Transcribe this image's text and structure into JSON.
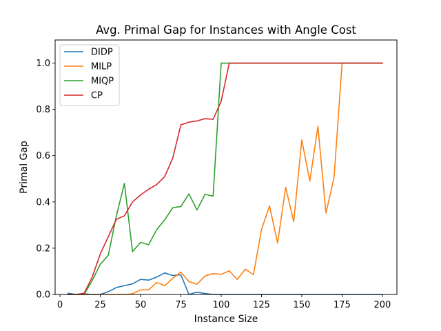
{
  "chart_data": {
    "type": "line",
    "title": "Avg. Primal Gap for Instances with Angle Cost",
    "xlabel": "Instance Size",
    "ylabel": "Primal Gap",
    "xlim": [
      -3,
      209
    ],
    "ylim": [
      0,
      1.1
    ],
    "xticks": [
      0,
      25,
      50,
      75,
      100,
      125,
      150,
      175,
      200
    ],
    "yticks": [
      0.0,
      0.2,
      0.4,
      0.6,
      0.8,
      1.0
    ],
    "xtick_labels": [
      "0",
      "25",
      "50",
      "75",
      "100",
      "125",
      "150",
      "175",
      "200"
    ],
    "ytick_labels": [
      "0.0",
      "0.2",
      "0.4",
      "0.6",
      "0.8",
      "1.0"
    ],
    "grid": false,
    "legend_position": "top-left",
    "x": [
      5,
      10,
      15,
      20,
      25,
      30,
      35,
      40,
      45,
      50,
      55,
      60,
      65,
      70,
      75,
      80,
      85,
      90,
      95,
      100,
      105,
      110,
      115,
      120,
      125,
      130,
      135,
      140,
      145,
      150,
      155,
      160,
      165,
      170,
      175,
      180,
      185,
      190,
      195,
      200
    ],
    "series": [
      {
        "name": "DIDP",
        "color": "#1f77b4",
        "values": [
          0.005,
          0.0,
          0.003,
          0.0,
          0.0,
          0.012,
          0.03,
          0.038,
          0.046,
          0.065,
          0.062,
          0.075,
          0.093,
          0.082,
          0.085,
          0.0,
          0.01,
          0.004,
          0.0,
          0.0,
          0.0,
          0.0,
          0.0,
          0.0,
          0.0,
          0.0,
          0.0,
          0.0,
          0.0,
          0.0,
          0.0,
          0.0,
          0.0,
          0.0,
          0.0,
          0.0,
          0.0,
          0.0,
          0.0,
          0.0
        ]
      },
      {
        "name": "MILP",
        "color": "#ff7f0e",
        "values": [
          0.0,
          0.0,
          0.0,
          0.0,
          0.0,
          0.0,
          0.0,
          0.0,
          0.003,
          0.02,
          0.02,
          0.052,
          0.038,
          0.07,
          0.097,
          0.055,
          0.044,
          0.08,
          0.09,
          0.087,
          0.102,
          0.065,
          0.11,
          0.085,
          0.28,
          0.383,
          0.222,
          0.463,
          0.315,
          0.668,
          0.49,
          0.727,
          0.352,
          0.505,
          1.0,
          1.0,
          1.0,
          1.0,
          1.0,
          1.0
        ]
      },
      {
        "name": "MIQP",
        "color": "#2ca02c",
        "values": [
          0.0,
          0.0,
          0.0,
          0.06,
          0.13,
          0.17,
          0.34,
          0.48,
          0.185,
          0.225,
          0.215,
          0.28,
          0.323,
          0.375,
          0.38,
          0.435,
          0.365,
          0.433,
          0.425,
          1.0,
          1.0,
          1.0,
          1.0,
          1.0,
          1.0,
          1.0,
          1.0,
          1.0,
          1.0,
          1.0,
          1.0,
          1.0,
          1.0,
          1.0,
          1.0,
          1.0,
          1.0,
          1.0,
          1.0,
          1.0
        ]
      },
      {
        "name": "CP",
        "color": "#d62728",
        "values": [
          0.0,
          0.0,
          0.005,
          0.075,
          0.175,
          0.25,
          0.325,
          0.34,
          0.4,
          0.43,
          0.455,
          0.475,
          0.51,
          0.59,
          0.733,
          0.745,
          0.75,
          0.76,
          0.757,
          0.835,
          1.0,
          1.0,
          1.0,
          1.0,
          1.0,
          1.0,
          1.0,
          1.0,
          1.0,
          1.0,
          1.0,
          1.0,
          1.0,
          1.0,
          1.0,
          1.0,
          1.0,
          1.0,
          1.0,
          1.0
        ]
      }
    ]
  }
}
